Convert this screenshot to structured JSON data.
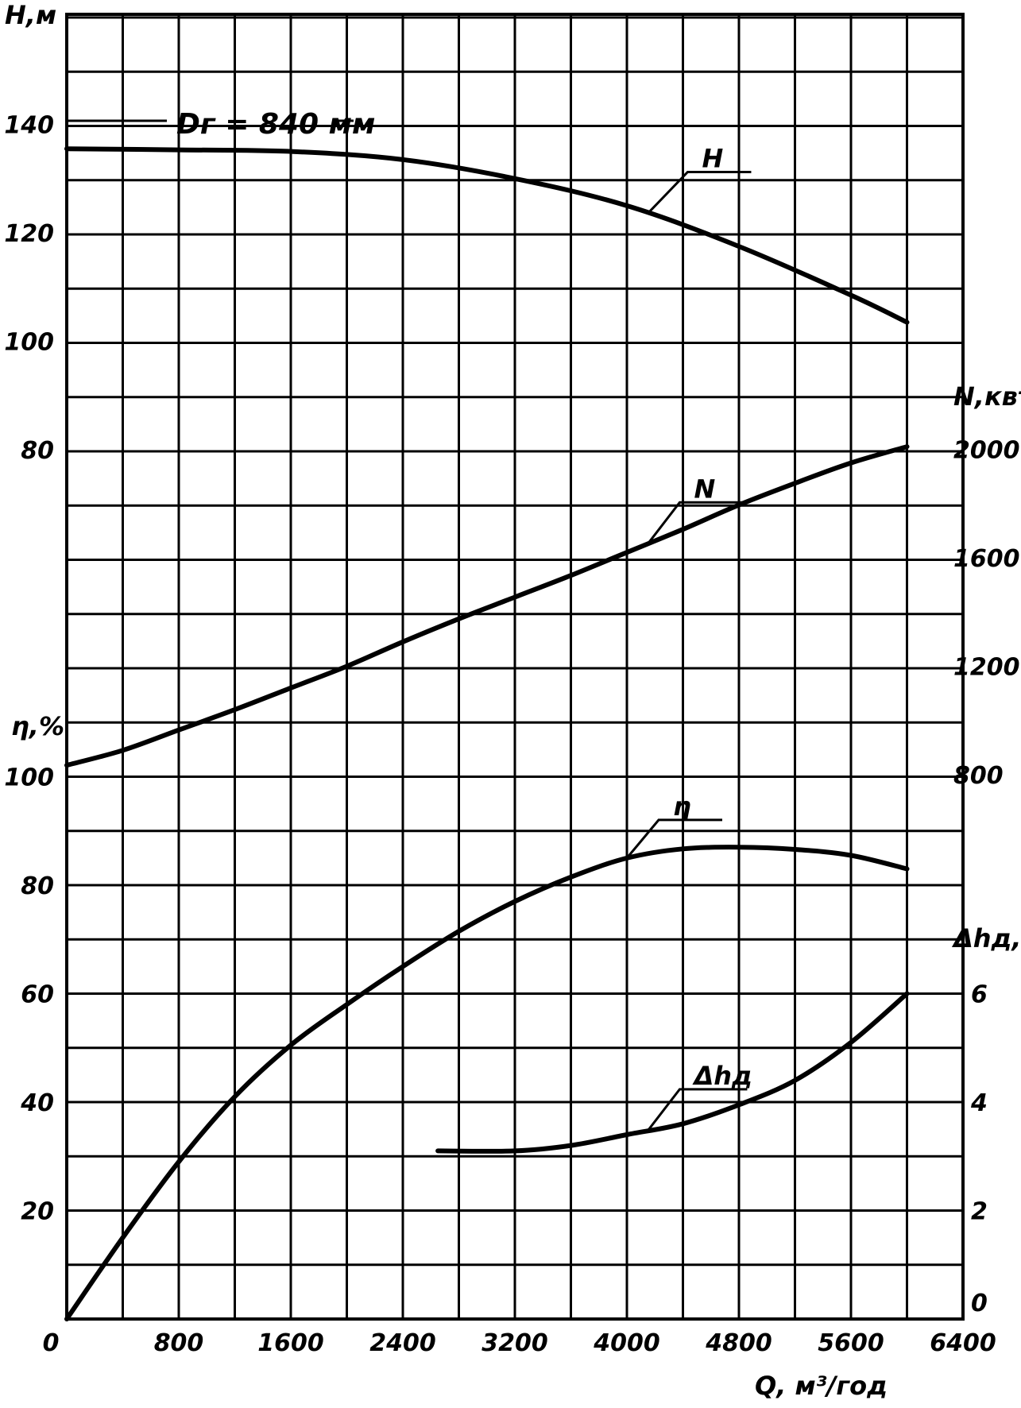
{
  "chart_data": {
    "type": "line",
    "title": "",
    "grid": true,
    "x": {
      "label": "Q, м³/год",
      "range": [
        0,
        6400
      ],
      "ticks": [
        "0",
        "800",
        "1600",
        "2400",
        "3200",
        "4000",
        "4800",
        "5600",
        "6400"
      ],
      "tick_values": [
        0,
        800,
        1600,
        2400,
        3200,
        4000,
        4800,
        5600,
        6400
      ]
    },
    "axes": {
      "H": {
        "label": "H,м",
        "side": "left",
        "range": [
          70,
          160
        ],
        "ticks": [
          "80",
          "100",
          "120",
          "140"
        ],
        "tick_values": [
          80,
          100,
          120,
          140
        ]
      },
      "eta": {
        "label": "η,%",
        "side": "left",
        "range": [
          0,
          105
        ],
        "ticks": [
          "20",
          "40",
          "60",
          "80",
          "100"
        ],
        "tick_values": [
          20,
          40,
          60,
          80,
          100
        ]
      },
      "N": {
        "label": "N,квт",
        "side": "right",
        "range": [
          800,
          2200
        ],
        "ticks": [
          "800",
          "1200",
          "1600",
          "2000"
        ],
        "tick_values": [
          800,
          1200,
          1600,
          2000
        ]
      },
      "dh": {
        "label": "Δhд,м",
        "side": "right",
        "range": [
          0,
          6
        ],
        "ticks": [
          "0",
          "2",
          "4",
          "6"
        ],
        "tick_values": [
          0,
          2,
          4,
          6
        ]
      }
    },
    "annotation": "Dг = 840 мм",
    "series": [
      {
        "name": "H",
        "axis": "H",
        "x": [
          0,
          800,
          1600,
          2400,
          3200,
          4000,
          4800,
          5600,
          6000
        ],
        "y": [
          135.5,
          135.3,
          135,
          133.5,
          130,
          125,
          117.5,
          108.5,
          103.5
        ]
      },
      {
        "name": "N",
        "axis": "N",
        "x": [
          0,
          400,
          800,
          1200,
          1600,
          2000,
          2400,
          2800,
          3200,
          3600,
          4000,
          4400,
          4800,
          5200,
          5600,
          6000
        ],
        "y": [
          835,
          890,
          965,
          1040,
          1120,
          1200,
          1290,
          1375,
          1455,
          1535,
          1620,
          1705,
          1795,
          1875,
          1950,
          2010
        ]
      },
      {
        "name": "η",
        "axis": "eta",
        "x": [
          0,
          400,
          800,
          1200,
          1600,
          2000,
          2400,
          2800,
          3200,
          3600,
          4000,
          4400,
          4800,
          5200,
          5600,
          6000
        ],
        "y": [
          0,
          15,
          29,
          41,
          50.5,
          58,
          65,
          71.5,
          77,
          81.5,
          85,
          86.7,
          87,
          86.6,
          85.5,
          83
        ]
      },
      {
        "name": "Δhд",
        "axis": "dh",
        "x": [
          2650,
          3200,
          3600,
          4000,
          4400,
          4800,
          5200,
          5600,
          6000
        ],
        "y": [
          3.1,
          3.1,
          3.2,
          3.4,
          3.6,
          3.95,
          4.4,
          5.1,
          6.0
        ]
      }
    ]
  }
}
